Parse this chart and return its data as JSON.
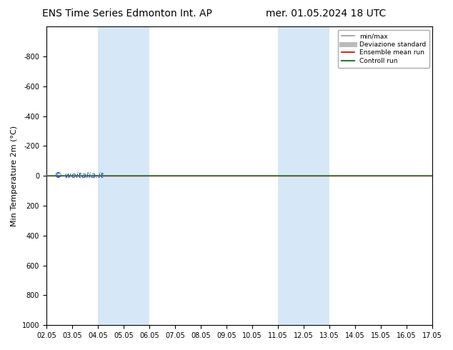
{
  "title_left": "ENS Time Series Edmonton Int. AP",
  "title_right": "mer. 01.05.2024 18 UTC",
  "ylabel": "Min Temperature 2m (°C)",
  "xlabel_ticks": [
    "02.05",
    "03.05",
    "04.05",
    "05.05",
    "06.05",
    "07.05",
    "08.05",
    "09.05",
    "10.05",
    "11.05",
    "12.05",
    "13.05",
    "14.05",
    "15.05",
    "16.05",
    "17.05"
  ],
  "xlim": [
    0,
    15
  ],
  "ymin": -1000,
  "ymax": 1000,
  "yticks": [
    -800,
    -600,
    -400,
    -200,
    0,
    200,
    400,
    600,
    800,
    1000
  ],
  "shaded_bands": [
    {
      "xmin": 2,
      "xmax": 4,
      "color": "#d6e8f7"
    },
    {
      "xmin": 9,
      "xmax": 11,
      "color": "#d6e8f7"
    }
  ],
  "hline_color": "#2d7a2d",
  "hline_linewidth": 1.2,
  "ensemble_line_color": "#cc0000",
  "ensemble_line_linewidth": 1.0,
  "watermark_text": "© woitalia.it",
  "watermark_color": "#0033cc",
  "watermark_fontsize": 8,
  "legend_items": [
    {
      "label": "min/max",
      "color": "#999999",
      "linestyle": "-",
      "linewidth": 1.2
    },
    {
      "label": "Deviazione standard",
      "color": "#bbbbbb",
      "linestyle": "-",
      "linewidth": 5
    },
    {
      "label": "Ensemble mean run",
      "color": "#cc0000",
      "linestyle": "-",
      "linewidth": 1.2
    },
    {
      "label": "Controll run",
      "color": "#2d7a2d",
      "linestyle": "-",
      "linewidth": 1.5
    }
  ],
  "bg_color": "#ffffff",
  "spine_color": "#000000",
  "title_fontsize": 10,
  "tick_fontsize": 7,
  "ylabel_fontsize": 8,
  "fig_width": 6.34,
  "fig_height": 4.9,
  "dpi": 100
}
